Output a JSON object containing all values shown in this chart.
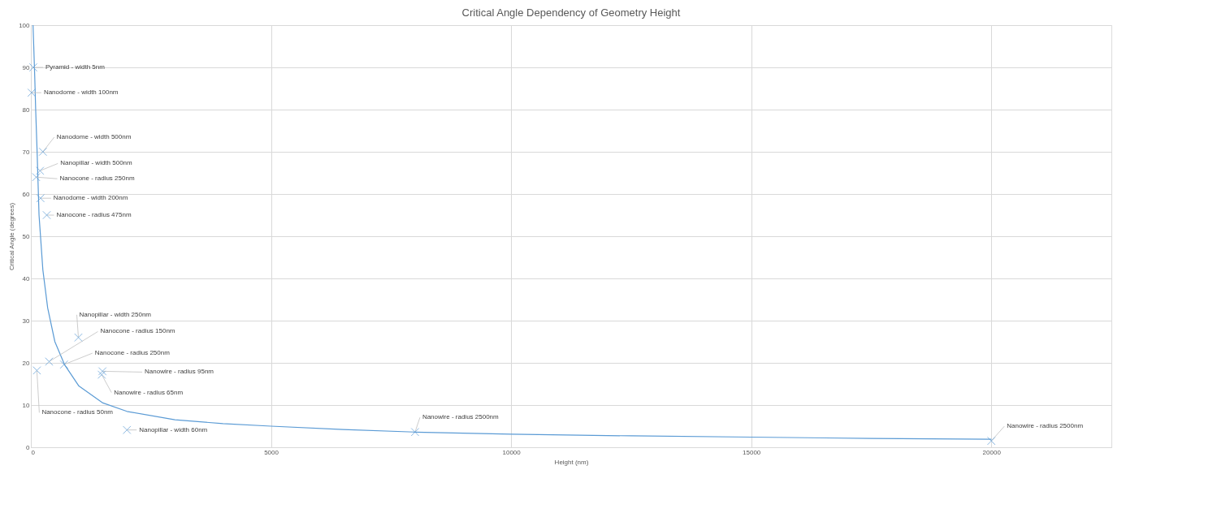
{
  "chart_data": {
    "type": "scatter",
    "title": "Critical Angle Dependency of Geometry Height",
    "xlabel": "Height (nm)",
    "ylabel": "Critical Angle (degrees)",
    "xlim": [
      0,
      22500
    ],
    "xticks": [
      0,
      5000,
      10000,
      15000,
      20000
    ],
    "ylim": [
      0,
      100
    ],
    "yticks": [
      0,
      10,
      20,
      30,
      40,
      50,
      60,
      70,
      80,
      90,
      100
    ],
    "grid": true,
    "legend": false,
    "series": [
      {
        "type": "line",
        "color": "#5b9bd5",
        "line_style": "solid",
        "x": [
          45,
          60,
          80,
          100,
          130,
          170,
          250,
          350,
          500,
          700,
          1000,
          1500,
          2000,
          3000,
          4000,
          5000,
          6500,
          8000,
          10000,
          12500,
          15000,
          17500,
          20000
        ],
        "values": [
          100,
          95,
          88,
          80,
          70,
          55,
          42,
          33,
          25,
          19.6,
          14.5,
          10.5,
          8.5,
          6.5,
          5.6,
          5,
          4.2,
          3.6,
          3.1,
          2.7,
          2.4,
          2.1,
          1.9
        ]
      },
      {
        "color": "#5b9bd5",
        "marker": "cross",
        "x": [
          50,
          15,
          250,
          190,
          110,
          200,
          330,
          990,
          380,
          690,
          125,
          1490,
          1475,
          2000,
          8000,
          20000
        ],
        "values": [
          90,
          84,
          70,
          65.5,
          64,
          59,
          55,
          26,
          20.3,
          19.6,
          18.2,
          18,
          17.2,
          4.1,
          3.6,
          1.5
        ]
      }
    ],
    "annotations": [
      {
        "text": "Pyramid - width 5nm",
        "x": 50,
        "y": 90
      },
      {
        "text": "Nanodome - width 100nm",
        "x": 15,
        "y": 84
      },
      {
        "text": "Nanodome - width 500nm",
        "x": 250,
        "y": 70
      },
      {
        "text": "Nanopillar - width 500nm",
        "x": 190,
        "y": 65.5
      },
      {
        "text": "Nanocone - radius 250nm",
        "x": 110,
        "y": 64
      },
      {
        "text": "Nanodome - width 200nm",
        "x": 200,
        "y": 59
      },
      {
        "text": "Nanocone - radius 475nm",
        "x": 330,
        "y": 55
      },
      {
        "text": "Nanopillar - width 250nm",
        "x": 990,
        "y": 26
      },
      {
        "text": "Nanocone - radius 150nm",
        "x": 380,
        "y": 20.3
      },
      {
        "text": "Nanocone - radius 250nm",
        "x": 690,
        "y": 19.6
      },
      {
        "text": "Nanocone - radius 50nm",
        "x": 125,
        "y": 18.2
      },
      {
        "text": "Nanowire - radius 95nm",
        "x": 1490,
        "y": 18
      },
      {
        "text": "Nanowire - radius 65nm",
        "x": 1475,
        "y": 17.2
      },
      {
        "text": "Nanopillar - width 60nm",
        "x": 2000,
        "y": 4.1
      },
      {
        "text": "Nanowire - radius 2500nm",
        "x": 8000,
        "y": 3.6
      },
      {
        "text": "Nanowire - radius 2500nm",
        "x": 20000,
        "y": 1.5
      }
    ]
  }
}
